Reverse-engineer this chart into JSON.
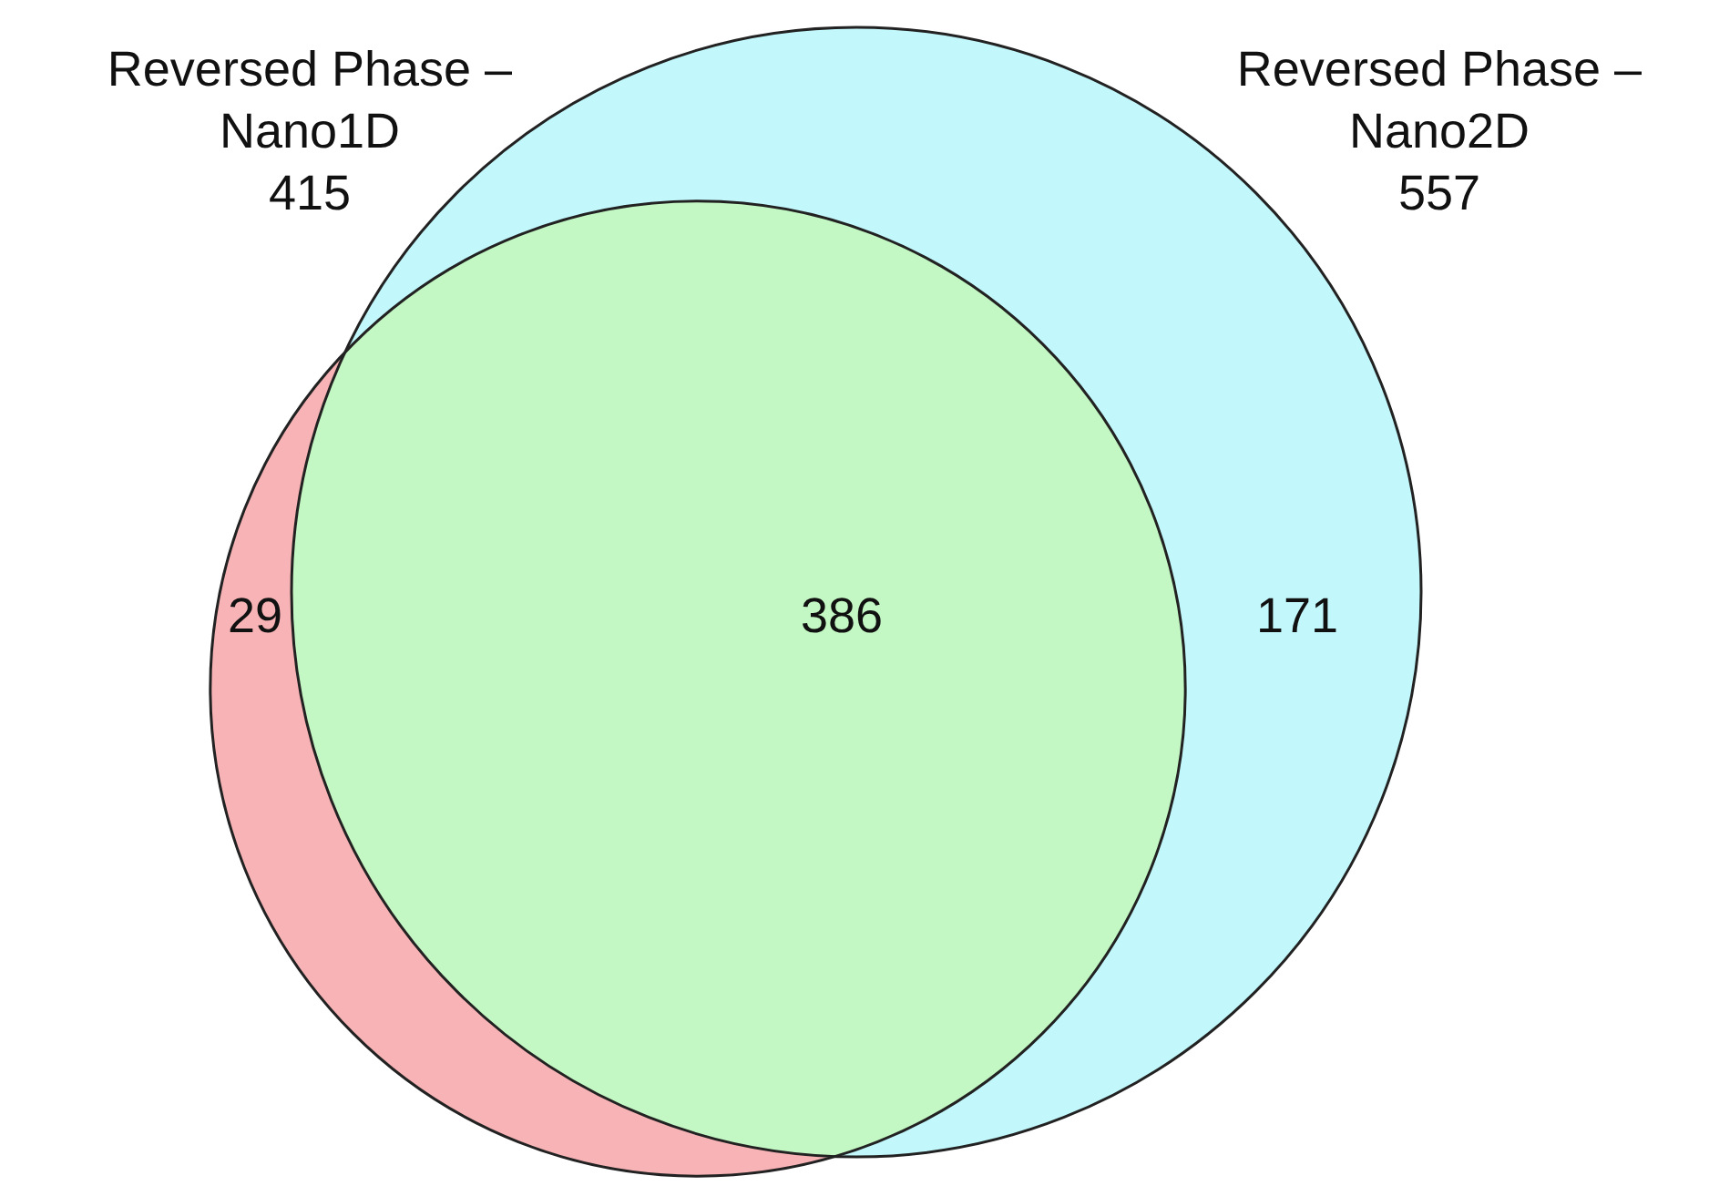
{
  "chart_data": {
    "type": "other",
    "annotations": [
      "Reversed Phase –\nNano1D\n415",
      "Reversed Phase –\nNano2D\n557"
    ],
    "categories": [
      null,
      null,
      null
    ],
    "values": [
      29,
      386,
      171
    ],
    "colors": [
      "#f7b3b5",
      "#c3f7c3",
      "#c2f7fb"
    ],
    "data_labels": true
  }
}
